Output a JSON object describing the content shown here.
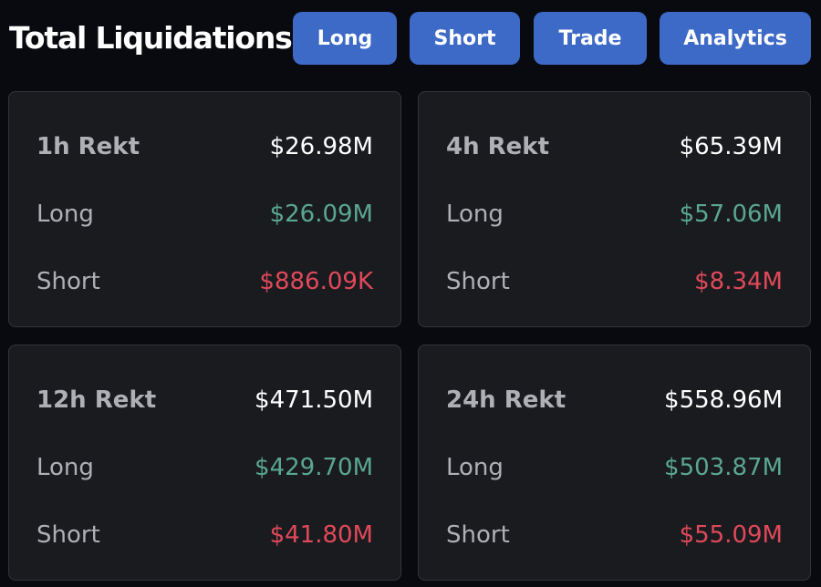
{
  "header": {
    "title": "Total Liquidations",
    "buttons": {
      "long": "Long",
      "short": "Short",
      "trade": "Trade",
      "analytics": "Analytics"
    }
  },
  "cards": [
    {
      "title": "1h Rekt",
      "total": "$26.98M",
      "long_label": "Long",
      "long_value": "$26.09M",
      "short_label": "Short",
      "short_value": "$886.09K"
    },
    {
      "title": "4h Rekt",
      "total": "$65.39M",
      "long_label": "Long",
      "long_value": "$57.06M",
      "short_label": "Short",
      "short_value": "$8.34M"
    },
    {
      "title": "12h Rekt",
      "total": "$471.50M",
      "long_label": "Long",
      "long_value": "$429.70M",
      "short_label": "Short",
      "short_value": "$41.80M"
    },
    {
      "title": "24h Rekt",
      "total": "$558.96M",
      "long_label": "Long",
      "long_value": "$503.87M",
      "short_label": "Short",
      "short_value": "$55.09M"
    }
  ],
  "colors": {
    "background": "#090a0f",
    "card": "#1a1b1f",
    "button": "#3e6ac7",
    "long": "#5aa78e",
    "short": "#e0495a"
  }
}
